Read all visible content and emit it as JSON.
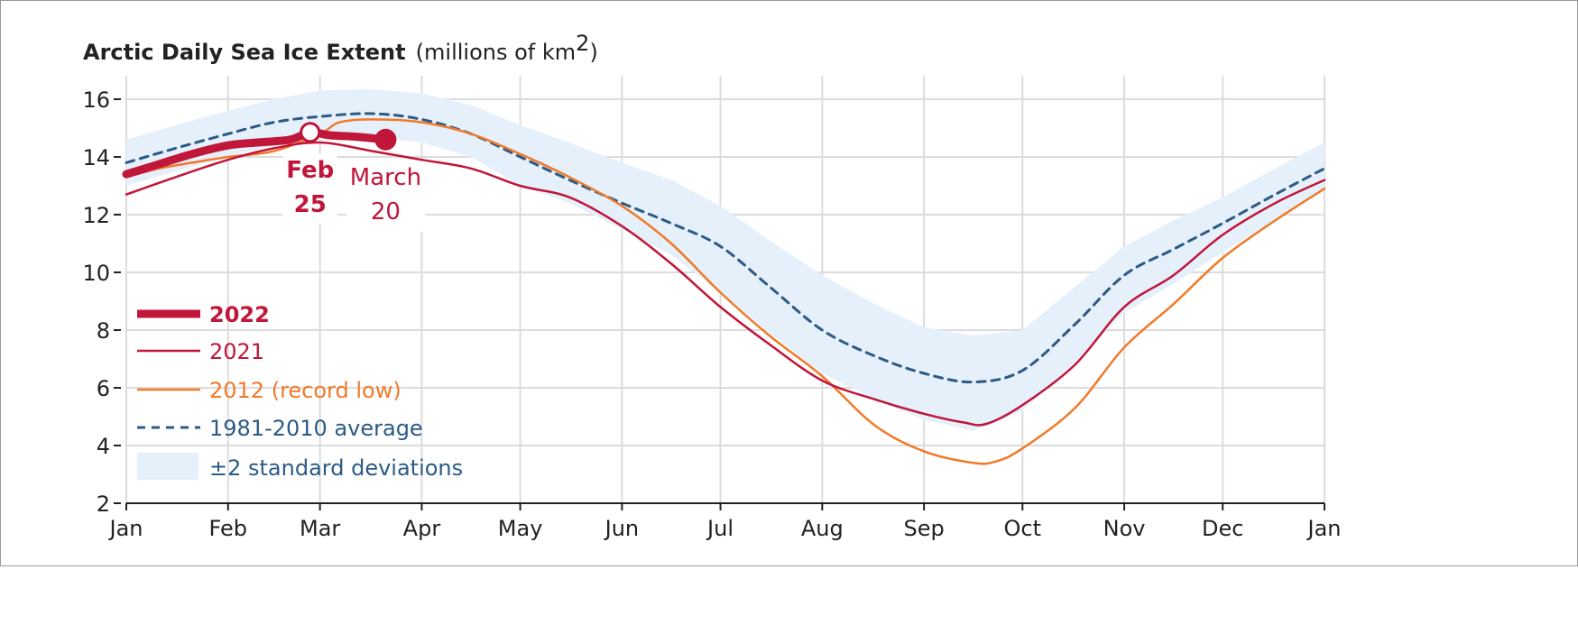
{
  "chart_data": {
    "type": "line",
    "title": "Arctic Daily Sea Ice Extent",
    "title_units": "(millions of km",
    "title_units_sup": "2",
    "title_units_close": ")",
    "xlabel": "",
    "ylabel": "",
    "x_unit": "day of year",
    "ylim": [
      2,
      16
    ],
    "xlim": [
      0,
      365
    ],
    "grid": true,
    "legend_position": "bottom-left",
    "y_ticks": [
      2,
      4,
      6,
      8,
      10,
      12,
      14,
      16
    ],
    "y_tick_labels": [
      "2",
      "4",
      "6",
      "8",
      "10",
      "12",
      "14",
      "16"
    ],
    "x_ticks": [
      0,
      31,
      59,
      90,
      120,
      151,
      181,
      212,
      243,
      273,
      304,
      334,
      365
    ],
    "x_tick_labels": [
      "Jan",
      "Feb",
      "Mar",
      "Apr",
      "May",
      "Jun",
      "Jul",
      "Aug",
      "Sep",
      "Oct",
      "Nov",
      "Dec",
      "Jan"
    ],
    "band": {
      "name": "±2 standard deviations",
      "color": "#e6f0fa",
      "x": [
        0,
        15,
        31,
        45,
        59,
        75,
        90,
        105,
        120,
        135,
        151,
        166,
        181,
        196,
        212,
        228,
        243,
        258,
        273,
        289,
        304,
        319,
        334,
        350,
        365
      ],
      "upper": [
        14.6,
        15.1,
        15.6,
        16.0,
        16.3,
        16.35,
        16.2,
        15.8,
        15.1,
        14.5,
        13.8,
        13.2,
        12.3,
        11.1,
        9.9,
        8.9,
        8.1,
        7.8,
        8.0,
        9.5,
        10.9,
        11.8,
        12.6,
        13.6,
        14.5
      ],
      "lower": [
        13.0,
        13.5,
        14.0,
        14.4,
        14.6,
        14.7,
        14.5,
        14.0,
        13.0,
        12.4,
        11.5,
        10.6,
        9.3,
        7.9,
        6.5,
        5.6,
        4.9,
        4.5,
        5.2,
        6.9,
        8.6,
        9.6,
        10.7,
        11.8,
        12.9
      ]
    },
    "series": [
      {
        "name": "1981-2010 average",
        "color": "#2c5a85",
        "style": "dashed",
        "x": [
          0,
          15,
          31,
          45,
          59,
          75,
          90,
          105,
          120,
          135,
          151,
          166,
          181,
          196,
          212,
          228,
          243,
          258,
          273,
          289,
          304,
          319,
          334,
          350,
          365
        ],
        "y": [
          13.8,
          14.3,
          14.8,
          15.2,
          15.4,
          15.5,
          15.3,
          14.8,
          14.0,
          13.2,
          12.4,
          11.7,
          10.9,
          9.5,
          8.0,
          7.1,
          6.5,
          6.2,
          6.6,
          8.2,
          9.9,
          10.8,
          11.7,
          12.7,
          13.6
        ]
      },
      {
        "name": "2012 (record low)",
        "color": "#f07a28",
        "style": "solid",
        "x": [
          0,
          10,
          20,
          31,
          45,
          59,
          65,
          75,
          90,
          105,
          120,
          135,
          151,
          166,
          181,
          196,
          212,
          228,
          243,
          258,
          265,
          273,
          289,
          304,
          319,
          334,
          350,
          365
        ],
        "y": [
          13.3,
          13.6,
          13.8,
          14.0,
          14.2,
          14.8,
          15.2,
          15.3,
          15.2,
          14.8,
          14.1,
          13.3,
          12.3,
          11.0,
          9.3,
          7.8,
          6.4,
          4.7,
          3.8,
          3.4,
          3.45,
          3.9,
          5.3,
          7.4,
          8.9,
          10.5,
          11.8,
          12.9
        ]
      },
      {
        "name": "2021",
        "color": "#c0163a",
        "style": "solid",
        "x": [
          0,
          15,
          31,
          45,
          59,
          75,
          90,
          105,
          120,
          135,
          151,
          166,
          181,
          196,
          212,
          228,
          243,
          255,
          262,
          273,
          289,
          304,
          319,
          334,
          350,
          365
        ],
        "y": [
          12.7,
          13.3,
          13.9,
          14.3,
          14.5,
          14.2,
          13.9,
          13.6,
          13.0,
          12.6,
          11.6,
          10.3,
          8.8,
          7.5,
          6.25,
          5.6,
          5.1,
          4.8,
          4.75,
          5.4,
          6.8,
          8.8,
          9.9,
          11.3,
          12.4,
          13.2
        ]
      },
      {
        "name": "2022",
        "color": "#c0163a",
        "style": "thick",
        "x": [
          0,
          10,
          20,
          31,
          40,
          50,
          56,
          62,
          70,
          79
        ],
        "y": [
          13.4,
          13.75,
          14.1,
          14.4,
          14.5,
          14.6,
          14.85,
          14.75,
          14.7,
          14.6
        ]
      }
    ],
    "annotations": [
      {
        "label_line1": "Feb",
        "label_line2": "25",
        "x": 56,
        "y": 14.85,
        "marker": "open-circle"
      },
      {
        "label_line1": "March",
        "label_line2": "20",
        "x": 79,
        "y": 14.6,
        "marker": "filled-circle"
      }
    ],
    "legend": [
      {
        "label": "2022",
        "color": "#c0163a",
        "style": "thick"
      },
      {
        "label": "2021",
        "color": "#c0163a",
        "style": "solid"
      },
      {
        "label": "2012 (record low)",
        "color": "#f07a28",
        "style": "solid"
      },
      {
        "label": "1981-2010 average",
        "color": "#2c5a85",
        "style": "dashed"
      },
      {
        "label": "±2 standard deviations",
        "color": "#2c5a85",
        "style": "band"
      }
    ]
  }
}
